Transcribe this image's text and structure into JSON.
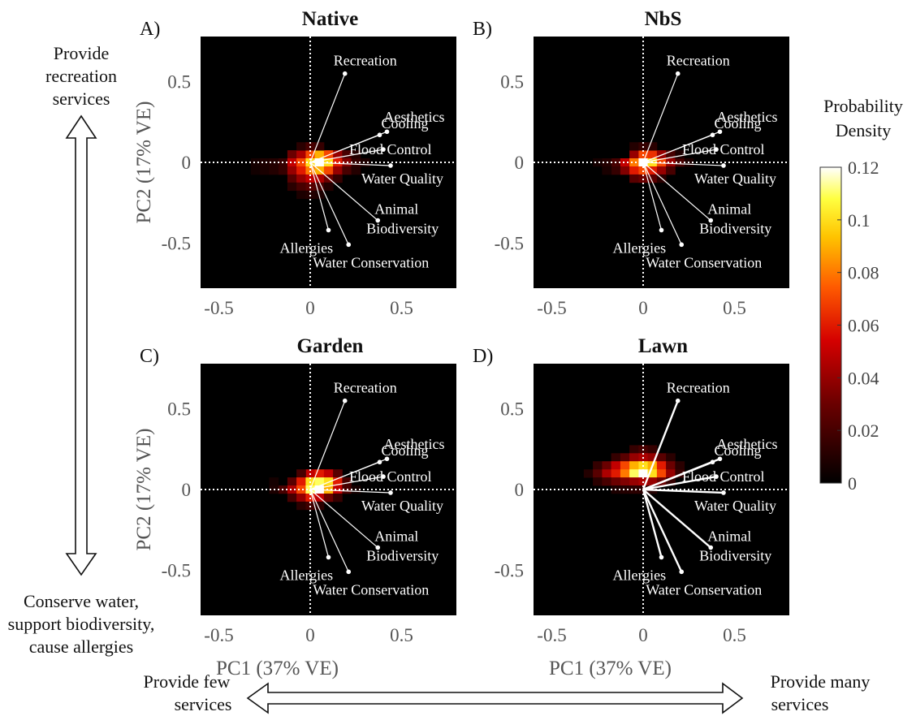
{
  "chart_data": [
    {
      "panel_label": "A)",
      "title": "Native",
      "type": "heatmap",
      "xlabel": "",
      "ylabel": "PC2 (17% VE)",
      "xlim": [
        -0.6,
        0.8
      ],
      "ylim": [
        -0.78,
        0.78
      ],
      "xticks": [
        "-0.5",
        "0",
        "0.5"
      ],
      "yticks": [
        "0.5",
        "0",
        "-0.5"
      ],
      "heat_cells": [
        {
          "x": -0.1,
          "y": 0.05,
          "v": 0.03
        },
        {
          "x": -0.05,
          "y": 0.05,
          "v": 0.045
        },
        {
          "x": 0.0,
          "y": 0.05,
          "v": 0.07
        },
        {
          "x": 0.05,
          "y": 0.05,
          "v": 0.09
        },
        {
          "x": 0.1,
          "y": 0.05,
          "v": 0.07
        },
        {
          "x": 0.15,
          "y": 0.05,
          "v": 0.04
        },
        {
          "x": 0.2,
          "y": 0.05,
          "v": 0.02
        },
        {
          "x": -0.15,
          "y": 0.0,
          "v": 0.015
        },
        {
          "x": -0.1,
          "y": 0.0,
          "v": 0.05
        },
        {
          "x": -0.05,
          "y": 0.0,
          "v": 0.07
        },
        {
          "x": 0.0,
          "y": 0.0,
          "v": 0.1
        },
        {
          "x": 0.05,
          "y": 0.0,
          "v": 0.12
        },
        {
          "x": 0.1,
          "y": 0.0,
          "v": 0.1
        },
        {
          "x": 0.15,
          "y": 0.0,
          "v": 0.06
        },
        {
          "x": 0.2,
          "y": 0.0,
          "v": 0.035
        },
        {
          "x": 0.25,
          "y": 0.0,
          "v": 0.015
        },
        {
          "x": -0.15,
          "y": -0.05,
          "v": 0.015
        },
        {
          "x": -0.1,
          "y": -0.05,
          "v": 0.04
        },
        {
          "x": -0.05,
          "y": -0.05,
          "v": 0.06
        },
        {
          "x": 0.0,
          "y": -0.05,
          "v": 0.08
        },
        {
          "x": 0.05,
          "y": -0.05,
          "v": 0.09
        },
        {
          "x": 0.1,
          "y": -0.05,
          "v": 0.07
        },
        {
          "x": 0.15,
          "y": -0.05,
          "v": 0.04
        },
        {
          "x": 0.2,
          "y": -0.05,
          "v": 0.02
        },
        {
          "x": -0.1,
          "y": -0.1,
          "v": 0.025
        },
        {
          "x": -0.05,
          "y": -0.1,
          "v": 0.04
        },
        {
          "x": 0.0,
          "y": -0.1,
          "v": 0.05
        },
        {
          "x": 0.05,
          "y": -0.1,
          "v": 0.045
        },
        {
          "x": 0.1,
          "y": -0.1,
          "v": 0.03
        },
        {
          "x": 0.15,
          "y": -0.1,
          "v": 0.015
        },
        {
          "x": -0.1,
          "y": -0.15,
          "v": 0.012
        },
        {
          "x": -0.05,
          "y": -0.15,
          "v": 0.02
        },
        {
          "x": 0.0,
          "y": -0.15,
          "v": 0.025
        },
        {
          "x": 0.05,
          "y": -0.15,
          "v": 0.02
        },
        {
          "x": 0.1,
          "y": -0.15,
          "v": 0.01
        },
        {
          "x": -0.05,
          "y": -0.2,
          "v": 0.008
        },
        {
          "x": 0.0,
          "y": -0.2,
          "v": 0.01
        },
        {
          "x": 0.05,
          "y": -0.2,
          "v": 0.008
        },
        {
          "x": -0.05,
          "y": 0.1,
          "v": 0.012
        },
        {
          "x": 0.0,
          "y": 0.1,
          "v": 0.02
        },
        {
          "x": 0.05,
          "y": 0.1,
          "v": 0.015
        },
        {
          "x": -0.3,
          "y": 0.0,
          "v": 0.006
        },
        {
          "x": -0.25,
          "y": 0.0,
          "v": 0.008
        },
        {
          "x": -0.2,
          "y": 0.0,
          "v": 0.01
        },
        {
          "x": -0.3,
          "y": -0.05,
          "v": 0.005
        },
        {
          "x": -0.25,
          "y": -0.05,
          "v": 0.007
        },
        {
          "x": -0.2,
          "y": -0.05,
          "v": 0.01
        },
        {
          "x": 0.25,
          "y": 0.05,
          "v": 0.01
        },
        {
          "x": 0.3,
          "y": 0.0,
          "v": 0.008
        },
        {
          "x": 0.25,
          "y": -0.05,
          "v": 0.01
        }
      ],
      "loadings": [
        {
          "name": "Recreation",
          "x": 0.19,
          "y": 0.55
        },
        {
          "name": "Aesthetics",
          "x": 0.42,
          "y": 0.19
        },
        {
          "name": "Cooling",
          "x": 0.38,
          "y": 0.17
        },
        {
          "name": "Flood Control",
          "x": 0.4,
          "y": 0.08
        },
        {
          "name": "Water Quality",
          "x": 0.44,
          "y": -0.02
        },
        {
          "name": "Animal Biodiversity",
          "x": 0.37,
          "y": -0.36
        },
        {
          "name": "Allergies",
          "x": 0.1,
          "y": -0.42
        },
        {
          "name": "Water Conservation",
          "x": 0.21,
          "y": -0.51
        }
      ]
    },
    {
      "panel_label": "B)",
      "title": "NbS",
      "type": "heatmap",
      "xlabel": "",
      "ylabel": "",
      "xlim": [
        -0.6,
        0.8
      ],
      "ylim": [
        -0.78,
        0.78
      ],
      "xticks": [
        "-0.5",
        "0",
        "0.5"
      ],
      "yticks": [
        "0.5",
        "0",
        "-0.5"
      ],
      "heat_cells": [
        {
          "x": -0.05,
          "y": 0.05,
          "v": 0.04
        },
        {
          "x": 0.0,
          "y": 0.05,
          "v": 0.07
        },
        {
          "x": 0.05,
          "y": 0.05,
          "v": 0.065
        },
        {
          "x": 0.1,
          "y": 0.05,
          "v": 0.04
        },
        {
          "x": 0.15,
          "y": 0.05,
          "v": 0.02
        },
        {
          "x": -0.15,
          "y": 0.0,
          "v": 0.02
        },
        {
          "x": -0.1,
          "y": 0.0,
          "v": 0.05
        },
        {
          "x": -0.05,
          "y": 0.0,
          "v": 0.08
        },
        {
          "x": 0.0,
          "y": 0.0,
          "v": 0.12
        },
        {
          "x": 0.05,
          "y": 0.0,
          "v": 0.1
        },
        {
          "x": 0.1,
          "y": 0.0,
          "v": 0.07
        },
        {
          "x": 0.15,
          "y": 0.0,
          "v": 0.04
        },
        {
          "x": 0.2,
          "y": 0.0,
          "v": 0.02
        },
        {
          "x": -0.15,
          "y": -0.05,
          "v": 0.015
        },
        {
          "x": -0.1,
          "y": -0.05,
          "v": 0.035
        },
        {
          "x": -0.05,
          "y": -0.05,
          "v": 0.06
        },
        {
          "x": 0.0,
          "y": -0.05,
          "v": 0.07
        },
        {
          "x": 0.05,
          "y": -0.05,
          "v": 0.06
        },
        {
          "x": 0.1,
          "y": -0.05,
          "v": 0.04
        },
        {
          "x": 0.15,
          "y": -0.05,
          "v": 0.02
        },
        {
          "x": -0.05,
          "y": -0.1,
          "v": 0.025
        },
        {
          "x": 0.0,
          "y": -0.1,
          "v": 0.03
        },
        {
          "x": 0.05,
          "y": -0.1,
          "v": 0.025
        },
        {
          "x": 0.1,
          "y": -0.1,
          "v": 0.012
        },
        {
          "x": -0.05,
          "y": 0.1,
          "v": 0.01
        },
        {
          "x": 0.0,
          "y": 0.1,
          "v": 0.015
        },
        {
          "x": 0.05,
          "y": 0.1,
          "v": 0.012
        },
        {
          "x": -0.25,
          "y": 0.0,
          "v": 0.006
        },
        {
          "x": -0.2,
          "y": 0.0,
          "v": 0.01
        },
        {
          "x": -0.2,
          "y": -0.05,
          "v": 0.007
        },
        {
          "x": 0.25,
          "y": 0.0,
          "v": 0.008
        },
        {
          "x": 0.2,
          "y": 0.05,
          "v": 0.008
        }
      ],
      "loadings": [
        {
          "name": "Recreation",
          "x": 0.19,
          "y": 0.55
        },
        {
          "name": "Aesthetics",
          "x": 0.42,
          "y": 0.19
        },
        {
          "name": "Cooling",
          "x": 0.38,
          "y": 0.17
        },
        {
          "name": "Flood Control",
          "x": 0.4,
          "y": 0.08
        },
        {
          "name": "Water Quality",
          "x": 0.44,
          "y": -0.02
        },
        {
          "name": "Animal Biodiversity",
          "x": 0.37,
          "y": -0.36
        },
        {
          "name": "Allergies",
          "x": 0.1,
          "y": -0.42
        },
        {
          "name": "Water Conservation",
          "x": 0.21,
          "y": -0.51
        }
      ]
    },
    {
      "panel_label": "C)",
      "title": "Garden",
      "type": "heatmap",
      "xlabel": "PC1 (37% VE)",
      "ylabel": "PC2 (17% VE)",
      "xlim": [
        -0.6,
        0.8
      ],
      "ylim": [
        -0.78,
        0.78
      ],
      "xticks": [
        "-0.5",
        "0",
        "0.5"
      ],
      "yticks": [
        "0.5",
        "0",
        "-0.5"
      ],
      "heat_cells": [
        {
          "x": 0.0,
          "y": 0.1,
          "v": 0.05
        },
        {
          "x": 0.05,
          "y": 0.1,
          "v": 0.06
        },
        {
          "x": 0.1,
          "y": 0.1,
          "v": 0.05
        },
        {
          "x": 0.15,
          "y": 0.1,
          "v": 0.025
        },
        {
          "x": -0.05,
          "y": 0.1,
          "v": 0.02
        },
        {
          "x": -0.1,
          "y": 0.05,
          "v": 0.025
        },
        {
          "x": -0.05,
          "y": 0.05,
          "v": 0.06
        },
        {
          "x": 0.0,
          "y": 0.05,
          "v": 0.1
        },
        {
          "x": 0.05,
          "y": 0.05,
          "v": 0.11
        },
        {
          "x": 0.1,
          "y": 0.05,
          "v": 0.1
        },
        {
          "x": 0.15,
          "y": 0.05,
          "v": 0.06
        },
        {
          "x": 0.2,
          "y": 0.05,
          "v": 0.02
        },
        {
          "x": -0.15,
          "y": 0.0,
          "v": 0.02
        },
        {
          "x": -0.1,
          "y": 0.0,
          "v": 0.045
        },
        {
          "x": -0.05,
          "y": 0.0,
          "v": 0.07
        },
        {
          "x": 0.0,
          "y": 0.0,
          "v": 0.11
        },
        {
          "x": 0.05,
          "y": 0.0,
          "v": 0.12
        },
        {
          "x": 0.1,
          "y": 0.0,
          "v": 0.09
        },
        {
          "x": 0.15,
          "y": 0.0,
          "v": 0.05
        },
        {
          "x": 0.2,
          "y": 0.0,
          "v": 0.02
        },
        {
          "x": -0.1,
          "y": -0.05,
          "v": 0.02
        },
        {
          "x": -0.05,
          "y": -0.05,
          "v": 0.04
        },
        {
          "x": 0.0,
          "y": -0.05,
          "v": 0.06
        },
        {
          "x": 0.05,
          "y": -0.05,
          "v": 0.05
        },
        {
          "x": 0.1,
          "y": -0.05,
          "v": 0.03
        },
        {
          "x": 0.15,
          "y": -0.05,
          "v": 0.015
        },
        {
          "x": -0.05,
          "y": -0.1,
          "v": 0.012
        },
        {
          "x": 0.0,
          "y": -0.1,
          "v": 0.018
        },
        {
          "x": 0.05,
          "y": -0.1,
          "v": 0.012
        },
        {
          "x": -0.2,
          "y": 0.0,
          "v": 0.008
        },
        {
          "x": -0.2,
          "y": 0.05,
          "v": 0.006
        },
        {
          "x": 0.25,
          "y": 0.0,
          "v": 0.006
        }
      ],
      "loadings": [
        {
          "name": "Recreation",
          "x": 0.19,
          "y": 0.55
        },
        {
          "name": "Aesthetics",
          "x": 0.42,
          "y": 0.19
        },
        {
          "name": "Cooling",
          "x": 0.38,
          "y": 0.17
        },
        {
          "name": "Flood Control",
          "x": 0.4,
          "y": 0.08
        },
        {
          "name": "Water Quality",
          "x": 0.44,
          "y": -0.02
        },
        {
          "name": "Animal Biodiversity",
          "x": 0.37,
          "y": -0.36
        },
        {
          "name": "Allergies",
          "x": 0.1,
          "y": -0.42
        },
        {
          "name": "Water Conservation",
          "x": 0.21,
          "y": -0.51
        }
      ]
    },
    {
      "panel_label": "D)",
      "title": "Lawn",
      "type": "heatmap",
      "xlabel": "PC1 (37% VE)",
      "ylabel": "",
      "xlim": [
        -0.6,
        0.8
      ],
      "ylim": [
        -0.78,
        0.78
      ],
      "xticks": [
        "-0.5",
        "0",
        "0.5"
      ],
      "yticks": [
        "0.5",
        "0",
        "-0.5"
      ],
      "heat_cells": [
        {
          "x": -0.05,
          "y": 0.25,
          "v": 0.015
        },
        {
          "x": 0.0,
          "y": 0.25,
          "v": 0.02
        },
        {
          "x": 0.05,
          "y": 0.25,
          "v": 0.015
        },
        {
          "x": -0.15,
          "y": 0.2,
          "v": 0.015
        },
        {
          "x": -0.1,
          "y": 0.2,
          "v": 0.025
        },
        {
          "x": -0.05,
          "y": 0.2,
          "v": 0.04
        },
        {
          "x": 0.0,
          "y": 0.2,
          "v": 0.045
        },
        {
          "x": 0.05,
          "y": 0.2,
          "v": 0.04
        },
        {
          "x": 0.1,
          "y": 0.2,
          "v": 0.025
        },
        {
          "x": 0.15,
          "y": 0.2,
          "v": 0.012
        },
        {
          "x": -0.25,
          "y": 0.15,
          "v": 0.015
        },
        {
          "x": -0.2,
          "y": 0.15,
          "v": 0.03
        },
        {
          "x": -0.15,
          "y": 0.15,
          "v": 0.05
        },
        {
          "x": -0.1,
          "y": 0.15,
          "v": 0.07
        },
        {
          "x": -0.05,
          "y": 0.15,
          "v": 0.09
        },
        {
          "x": 0.0,
          "y": 0.15,
          "v": 0.1
        },
        {
          "x": 0.05,
          "y": 0.15,
          "v": 0.09
        },
        {
          "x": 0.1,
          "y": 0.15,
          "v": 0.06
        },
        {
          "x": 0.15,
          "y": 0.15,
          "v": 0.03
        },
        {
          "x": 0.2,
          "y": 0.15,
          "v": 0.012
        },
        {
          "x": -0.3,
          "y": 0.1,
          "v": 0.01
        },
        {
          "x": -0.25,
          "y": 0.1,
          "v": 0.025
        },
        {
          "x": -0.2,
          "y": 0.1,
          "v": 0.045
        },
        {
          "x": -0.15,
          "y": 0.1,
          "v": 0.06
        },
        {
          "x": -0.1,
          "y": 0.1,
          "v": 0.08
        },
        {
          "x": -0.05,
          "y": 0.1,
          "v": 0.11
        },
        {
          "x": 0.0,
          "y": 0.1,
          "v": 0.12
        },
        {
          "x": 0.05,
          "y": 0.1,
          "v": 0.1
        },
        {
          "x": 0.1,
          "y": 0.1,
          "v": 0.07
        },
        {
          "x": 0.15,
          "y": 0.1,
          "v": 0.04
        },
        {
          "x": 0.2,
          "y": 0.1,
          "v": 0.015
        },
        {
          "x": -0.25,
          "y": 0.05,
          "v": 0.012
        },
        {
          "x": -0.2,
          "y": 0.05,
          "v": 0.02
        },
        {
          "x": -0.15,
          "y": 0.05,
          "v": 0.03
        },
        {
          "x": -0.1,
          "y": 0.05,
          "v": 0.035
        },
        {
          "x": -0.05,
          "y": 0.05,
          "v": 0.04
        },
        {
          "x": 0.0,
          "y": 0.05,
          "v": 0.045
        },
        {
          "x": 0.05,
          "y": 0.05,
          "v": 0.04
        },
        {
          "x": 0.1,
          "y": 0.05,
          "v": 0.03
        },
        {
          "x": 0.15,
          "y": 0.05,
          "v": 0.015
        },
        {
          "x": -0.15,
          "y": 0.0,
          "v": 0.008
        },
        {
          "x": -0.1,
          "y": 0.0,
          "v": 0.01
        },
        {
          "x": -0.05,
          "y": 0.0,
          "v": 0.012
        },
        {
          "x": 0.0,
          "y": 0.0,
          "v": 0.012
        },
        {
          "x": 0.05,
          "y": 0.0,
          "v": 0.01
        }
      ],
      "loadings": [
        {
          "name": "Recreation",
          "x": 0.19,
          "y": 0.55
        },
        {
          "name": "Aesthetics",
          "x": 0.42,
          "y": 0.19
        },
        {
          "name": "Cooling",
          "x": 0.38,
          "y": 0.17
        },
        {
          "name": "Flood Control",
          "x": 0.4,
          "y": 0.08
        },
        {
          "name": "Water Quality",
          "x": 0.44,
          "y": -0.02
        },
        {
          "name": "Animal Biodiversity",
          "x": 0.37,
          "y": -0.36
        },
        {
          "name": "Allergies",
          "x": 0.1,
          "y": -0.42
        },
        {
          "name": "Water Conservation",
          "x": 0.21,
          "y": -0.51
        }
      ]
    }
  ],
  "colorbar": {
    "title_line1": "Probability",
    "title_line2": "Density",
    "range": [
      0,
      0.12
    ],
    "ticks": [
      "0.12",
      "0.1",
      "0.08",
      "0.06",
      "0.04",
      "0.02",
      "0"
    ]
  },
  "annotations": {
    "top_left_line1": "Provide",
    "top_left_line2": "recreation",
    "top_left_line3": "services",
    "bottom_left_line1": "Conserve water,",
    "bottom_left_line2": "support biodiversity,",
    "bottom_left_line3": "cause allergies",
    "bottom_left_few_line1": "Provide few",
    "bottom_left_few_line2": "services",
    "bottom_right_many_line1": "Provide many",
    "bottom_right_many_line2": "services"
  },
  "colors": {
    "plot_bg": "#000000",
    "dashed_axis": "#ffffff",
    "loading_line": "#ffffff"
  }
}
